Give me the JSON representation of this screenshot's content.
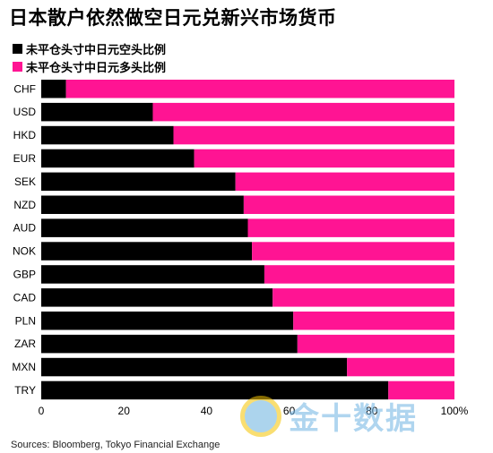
{
  "title": "日本散户依然做空日元兑新兴市场货币",
  "legend": [
    {
      "label": "未平仓头寸中日元空头比例",
      "color": "#000000"
    },
    {
      "label": "未平仓头寸中日元多头比例",
      "color": "#ff1493"
    }
  ],
  "source": "Sources: Bloomberg, Tokyo Financial Exchange",
  "watermark": "金十数据",
  "chart_data": {
    "type": "bar",
    "orientation": "horizontal",
    "stacked": true,
    "categories": [
      "CHF",
      "USD",
      "HKD",
      "EUR",
      "SEK",
      "NZD",
      "AUD",
      "NOK",
      "GBP",
      "CAD",
      "PLN",
      "ZAR",
      "MXN",
      "TRY"
    ],
    "series": [
      {
        "name": "未平仓头寸中日元空头比例",
        "color": "#000000",
        "values": [
          6,
          27,
          32,
          37,
          47,
          49,
          50,
          51,
          54,
          56,
          61,
          62,
          74,
          84
        ]
      },
      {
        "name": "未平仓头寸中日元多头比例",
        "color": "#ff1493",
        "values": [
          94,
          73,
          68,
          63,
          53,
          51,
          50,
          49,
          46,
          44,
          39,
          38,
          26,
          16
        ]
      }
    ],
    "x_ticks": [
      "0",
      "20",
      "40",
      "60",
      "80",
      "100%"
    ],
    "xlim": [
      0,
      100
    ],
    "grid": false,
    "legend_position": "top-left"
  }
}
